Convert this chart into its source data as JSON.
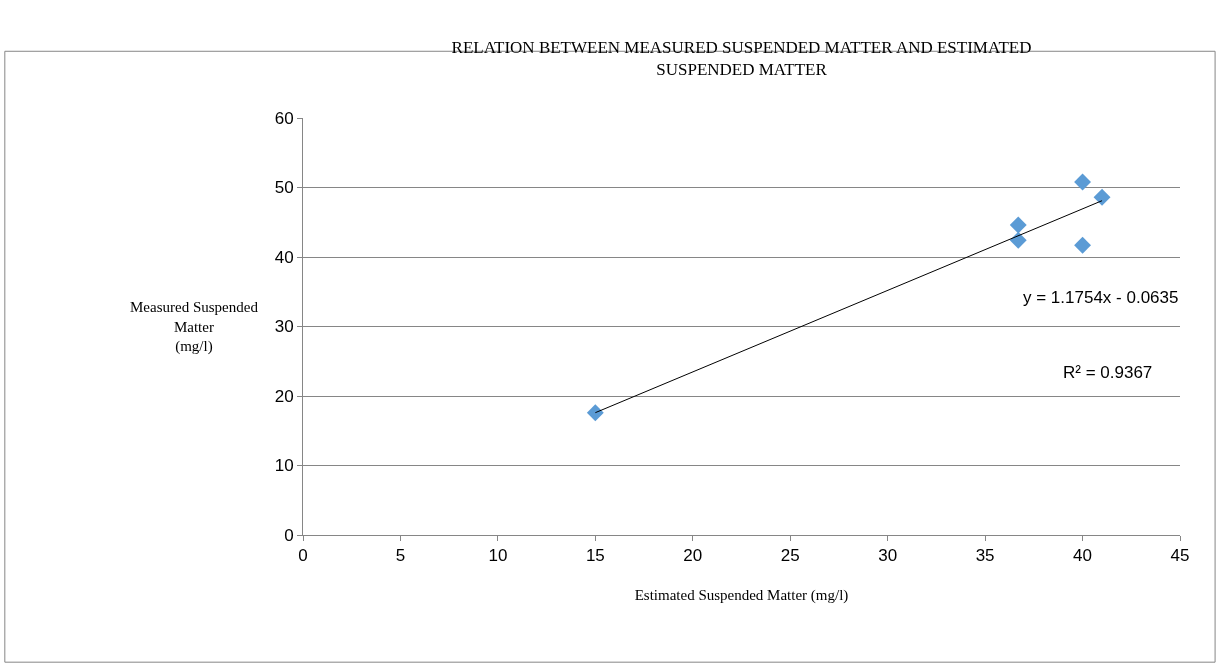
{
  "chart_data": {
    "type": "scatter",
    "title": "RELATION BETWEEN MEASURED SUSPENDED MATTER AND ESTIMATED\nSUSPENDED MATTER",
    "xlabel": "Estimated Suspended Matter (mg/l)",
    "ylabel": "Measured Suspended\nMatter\n(mg/l)",
    "x": [
      15,
      36.7,
      36.7,
      40,
      40,
      41
    ],
    "series": [
      {
        "color": "#5b9bd5",
        "marker": "diamond",
        "values": [
          17.6,
          44.6,
          42.4,
          50.8,
          41.7,
          48.6
        ]
      },
      {
        "type": "line",
        "color": "#000000",
        "marker": "none",
        "x": [
          15,
          41
        ],
        "values": [
          17.6,
          48.1
        ]
      }
    ],
    "annotations": [
      "y = 1.1754x - 0.0635",
      "R² = 0.9367"
    ],
    "xlim": [
      0,
      45
    ],
    "xticks": [
      0,
      5,
      10,
      15,
      20,
      25,
      30,
      35,
      40,
      45
    ],
    "ylim": [
      0,
      60
    ],
    "yticks": [
      0,
      10,
      20,
      30,
      40,
      50,
      60
    ],
    "grid": "y"
  }
}
